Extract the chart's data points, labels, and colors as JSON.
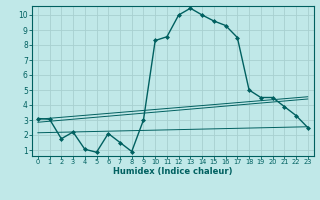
{
  "xlabel": "Humidex (Indice chaleur)",
  "bg_color": "#c0e8e8",
  "grid_color": "#a8d0d0",
  "line_color": "#006060",
  "xlim": [
    -0.5,
    23.5
  ],
  "ylim": [
    0.6,
    10.6
  ],
  "x_ticks": [
    0,
    1,
    2,
    3,
    4,
    5,
    6,
    7,
    8,
    9,
    10,
    11,
    12,
    13,
    14,
    15,
    16,
    17,
    18,
    19,
    20,
    21,
    22,
    23
  ],
  "y_ticks": [
    1,
    2,
    3,
    4,
    5,
    6,
    7,
    8,
    9,
    10
  ],
  "curve1_x": [
    0,
    1,
    2,
    3,
    4,
    5,
    6,
    7,
    8,
    9,
    10,
    11,
    12,
    13,
    14,
    15,
    16,
    17,
    18,
    19,
    20,
    21,
    22,
    23
  ],
  "curve1_y": [
    3.1,
    3.05,
    1.75,
    2.2,
    1.05,
    0.85,
    2.1,
    1.5,
    0.9,
    3.0,
    8.3,
    8.55,
    10.0,
    10.45,
    10.0,
    9.6,
    9.3,
    8.5,
    5.0,
    4.5,
    4.5,
    3.9,
    3.3,
    2.5
  ],
  "line1_x": [
    0,
    23
  ],
  "line1_y": [
    2.15,
    2.55
  ],
  "line2_x": [
    0,
    23
  ],
  "line2_y": [
    2.85,
    4.4
  ],
  "line3_x": [
    0,
    23
  ],
  "line3_y": [
    3.05,
    4.55
  ]
}
